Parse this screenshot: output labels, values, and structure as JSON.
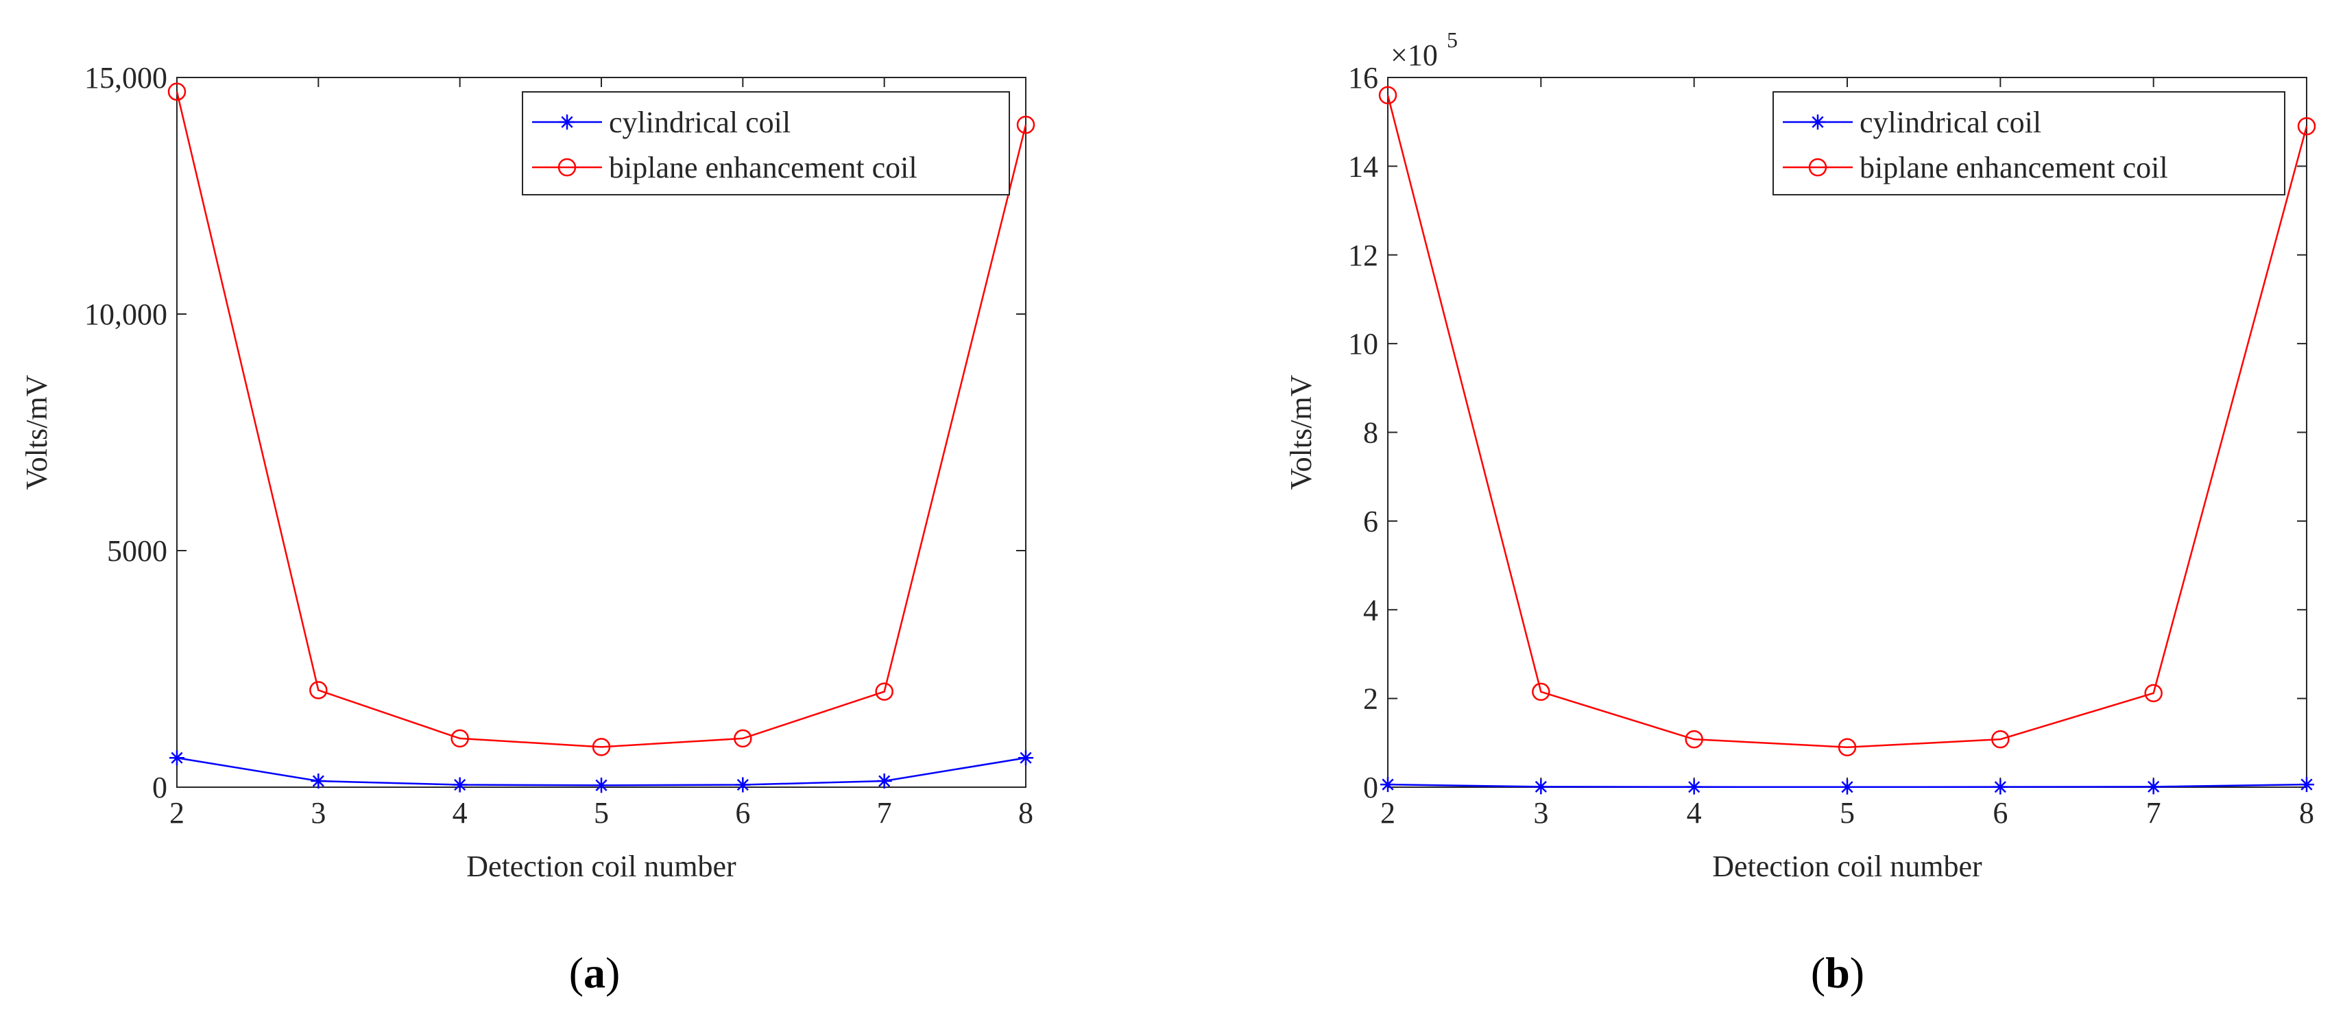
{
  "chart_data": [
    {
      "type": "line",
      "panel_label": "a",
      "title": "",
      "xlabel": "Detection coil number",
      "ylabel": "Volts/mV",
      "xlim": [
        2,
        8
      ],
      "ylim": [
        0,
        15000
      ],
      "exponent_label": "",
      "x": [
        2,
        3,
        4,
        5,
        6,
        7,
        8
      ],
      "xticks": [
        "2",
        "3",
        "4",
        "5",
        "6",
        "7",
        "8"
      ],
      "yticks": [
        {
          "value": 0,
          "label": "0"
        },
        {
          "value": 5000,
          "label": "5000"
        },
        {
          "value": 10000,
          "label": "10,000"
        },
        {
          "value": 15000,
          "label": "15,000"
        }
      ],
      "legend_position": "top-right",
      "series": [
        {
          "name": "cylindrical coil",
          "color": "#0000ff",
          "marker": "asterisk",
          "values": [
            620,
            130,
            50,
            40,
            50,
            130,
            620
          ]
        },
        {
          "name": "biplane enhancement coil",
          "color": "#ff0000",
          "marker": "circle",
          "values": [
            14700,
            2050,
            1030,
            850,
            1030,
            2020,
            14000
          ]
        }
      ]
    },
    {
      "type": "line",
      "panel_label": "b",
      "title": "",
      "xlabel": "Detection coil number",
      "ylabel": "Volts/mV",
      "xlim": [
        2,
        8
      ],
      "ylim": [
        0,
        16
      ],
      "exponent_label": "×10",
      "exponent_power": "5",
      "x": [
        2,
        3,
        4,
        5,
        6,
        7,
        8
      ],
      "xticks": [
        "2",
        "3",
        "4",
        "5",
        "6",
        "7",
        "8"
      ],
      "yticks": [
        {
          "value": 0,
          "label": "0"
        },
        {
          "value": 2,
          "label": "2"
        },
        {
          "value": 4,
          "label": "4"
        },
        {
          "value": 6,
          "label": "6"
        },
        {
          "value": 8,
          "label": "8"
        },
        {
          "value": 10,
          "label": "10"
        },
        {
          "value": 12,
          "label": "12"
        },
        {
          "value": 14,
          "label": "14"
        },
        {
          "value": 16,
          "label": "16"
        }
      ],
      "legend_position": "top-right",
      "series": [
        {
          "name": "cylindrical coil",
          "color": "#0000ff",
          "marker": "asterisk",
          "values": [
            0.06,
            0.01,
            0.005,
            0.004,
            0.005,
            0.01,
            0.06
          ]
        },
        {
          "name": "biplane enhancement coil",
          "color": "#ff0000",
          "marker": "circle",
          "values": [
            15.6,
            2.15,
            1.08,
            0.9,
            1.08,
            2.12,
            14.9
          ]
        }
      ]
    }
  ]
}
